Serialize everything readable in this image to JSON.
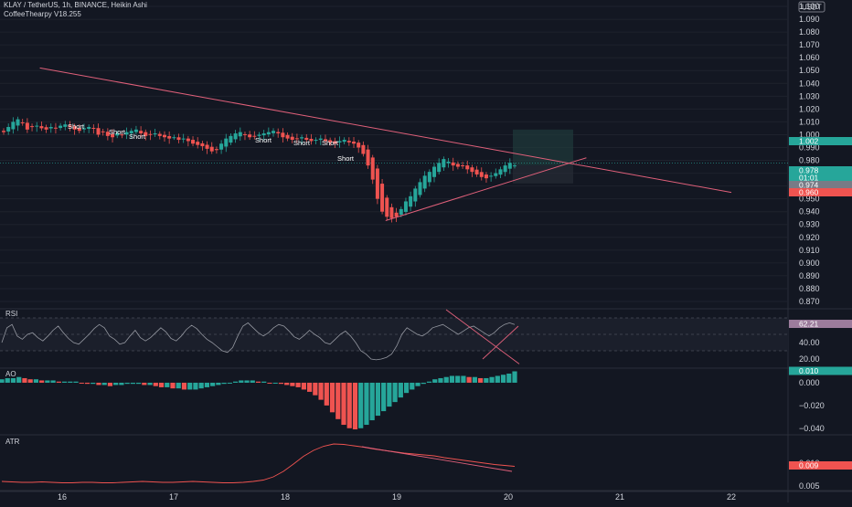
{
  "header": {
    "symbol_line": "KLAY / TetherUS, 1h, BINANCE, Heikin Ashi",
    "indicator_line": "CoffeeThearpy V18.255"
  },
  "currency_badge": "USDT",
  "panes": {
    "rsi_label": "RSI",
    "ao_label": "AO",
    "atr_label": "ATR"
  },
  "colors": {
    "background": "#131722",
    "bull": "#26a69a",
    "bear": "#ef5350",
    "trendline": "#e0607a",
    "grid": "#1e222d",
    "axis_text": "#d1d4dc"
  },
  "price_axis": {
    "ticks": [
      "1.100",
      "1.090",
      "1.080",
      "1.070",
      "1.060",
      "1.050",
      "1.040",
      "1.030",
      "1.020",
      "1.010",
      "1.000",
      "0.990",
      "0.980",
      "0.970",
      "0.960",
      "0.950",
      "0.940",
      "0.930",
      "0.920",
      "0.910",
      "0.900",
      "0.890",
      "0.880",
      "0.870"
    ],
    "badges": [
      {
        "text": "1.002",
        "color": "#26a69a"
      },
      {
        "text": "0.978",
        "color": "#26a69a"
      },
      {
        "text": "01:01",
        "color": "#26a69a"
      },
      {
        "text": "0.974",
        "color": "#787b86"
      },
      {
        "text": "0.960",
        "color": "#ef5350"
      }
    ]
  },
  "rsi_axis": {
    "ticks": [
      "40.00",
      "20.00"
    ],
    "badge": {
      "text": "62.21",
      "color": "#9c7c9c"
    }
  },
  "ao_axis": {
    "ticks": [
      "0.000",
      "−0.020",
      "−0.040"
    ],
    "badge": {
      "text": "0.010",
      "color": "#26a69a"
    }
  },
  "atr_axis": {
    "ticks": [
      "0.010",
      "0.005"
    ],
    "badge": {
      "text": "0.009",
      "color": "#ef5350"
    }
  },
  "time_axis": {
    "labels": [
      "16",
      "17",
      "18",
      "19",
      "20",
      "21",
      "22"
    ]
  },
  "signals": [
    {
      "text": "Short"
    },
    {
      "text": "Short"
    },
    {
      "text": "Short"
    },
    {
      "text": "Short"
    },
    {
      "text": "Short"
    },
    {
      "text": "Short"
    },
    {
      "text": "Short"
    }
  ],
  "chart_data": [
    {
      "type": "candlestick",
      "title": "KLAY / TetherUS, 1h, BINANCE, Heikin Ashi",
      "xlabel": "",
      "ylabel": "",
      "ylim": [
        0.865,
        1.105
      ],
      "x_ticks": [
        "16",
        "17",
        "18",
        "19",
        "20",
        "21",
        "22"
      ],
      "candles_close": [
        1.002,
        1.006,
        1.01,
        1.012,
        1.009,
        1.004,
        1.006,
        1.007,
        1.005,
        1.004,
        1.006,
        1.005,
        1.007,
        1.008,
        1.006,
        1.004,
        1.003,
        1.005,
        1.006,
        1.005,
        1.0,
        1.002,
        0.999,
        0.998,
        1.001,
        1.0,
        1.002,
        1.003,
        1.004,
        1.001,
        0.999,
        1.0,
        1.001,
        0.999,
        0.998,
        0.997,
        0.998,
        0.996,
        0.997,
        0.995,
        0.993,
        0.992,
        0.991,
        0.989,
        0.987,
        0.988,
        0.993,
        0.997,
        0.999,
        1.001,
        1.002,
        1.0,
        0.998,
        0.999,
        1.0,
        1.001,
        1.002,
        1.003,
        1.001,
        0.998,
        0.997,
        0.996,
        0.997,
        0.998,
        0.996,
        0.995,
        0.996,
        0.997,
        0.995,
        0.994,
        0.993,
        0.995,
        0.996,
        0.994,
        0.993,
        0.99,
        0.985,
        0.976,
        0.965,
        0.95,
        0.94,
        0.936,
        0.935,
        0.936,
        0.942,
        0.948,
        0.952,
        0.958,
        0.963,
        0.968,
        0.971,
        0.975,
        0.978,
        0.981,
        0.979,
        0.976,
        0.975,
        0.976,
        0.973,
        0.971,
        0.969,
        0.967,
        0.966,
        0.968,
        0.97,
        0.973,
        0.976,
        0.978,
        0.976
      ],
      "trendlines": [
        {
          "name": "resistance",
          "from": [
            "15.8",
            1.052
          ],
          "to": [
            "22",
            0.955
          ]
        },
        {
          "name": "support",
          "from": [
            "18.9",
            0.933
          ],
          "to": [
            "20.7",
            0.982
          ]
        }
      ]
    },
    {
      "type": "line",
      "title": "RSI",
      "xlabel": "",
      "ylabel": "",
      "ylim": [
        10,
        80
      ],
      "levels": [
        70,
        50,
        30
      ],
      "values": [
        40,
        58,
        62,
        48,
        44,
        50,
        52,
        46,
        42,
        48,
        55,
        60,
        52,
        45,
        40,
        38,
        44,
        50,
        57,
        62,
        58,
        48,
        44,
        38,
        40,
        48,
        55,
        46,
        42,
        46,
        52,
        58,
        53,
        45,
        42,
        48,
        56,
        61,
        57,
        50,
        44,
        40,
        35,
        30,
        28,
        34,
        48,
        60,
        64,
        58,
        52,
        48,
        52,
        58,
        62,
        60,
        54,
        47,
        44,
        49,
        55,
        50,
        46,
        40,
        38,
        44,
        50,
        54,
        48,
        40,
        30,
        26,
        20,
        19,
        20,
        22,
        26,
        36,
        50,
        58,
        54,
        50,
        48,
        52,
        58,
        60,
        62,
        58,
        54,
        50,
        54,
        58,
        60,
        56,
        52,
        48,
        52,
        58,
        62,
        64,
        62
      ]
    },
    {
      "type": "bar",
      "title": "AO",
      "xlabel": "",
      "ylabel": "",
      "ylim": [
        -0.045,
        0.012
      ],
      "values": [
        0.003,
        0.004,
        0.004,
        0.005,
        0.004,
        0.003,
        0.003,
        0.002,
        0.002,
        0.002,
        0.001,
        0.001,
        0.001,
        0.001,
        0.0,
        -0.001,
        -0.001,
        -0.002,
        -0.002,
        -0.003,
        -0.002,
        -0.002,
        -0.001,
        -0.001,
        -0.001,
        -0.002,
        -0.002,
        -0.003,
        -0.004,
        -0.004,
        -0.005,
        -0.005,
        -0.006,
        -0.006,
        -0.006,
        -0.005,
        -0.004,
        -0.003,
        -0.002,
        -0.001,
        0.0,
        0.001,
        0.002,
        0.002,
        0.002,
        0.001,
        0.001,
        0.0,
        0.0,
        -0.001,
        -0.002,
        -0.003,
        -0.004,
        -0.006,
        -0.008,
        -0.011,
        -0.015,
        -0.02,
        -0.026,
        -0.032,
        -0.037,
        -0.04,
        -0.041,
        -0.04,
        -0.037,
        -0.033,
        -0.029,
        -0.025,
        -0.021,
        -0.017,
        -0.013,
        -0.009,
        -0.006,
        -0.003,
        -0.001,
        0.001,
        0.003,
        0.004,
        0.005,
        0.006,
        0.006,
        0.006,
        0.005,
        0.005,
        0.004,
        0.004,
        0.005,
        0.006,
        0.007,
        0.008,
        0.01
      ]
    },
    {
      "type": "line",
      "title": "ATR",
      "xlabel": "",
      "ylabel": "",
      "ylim": [
        0.004,
        0.016
      ],
      "values": [
        0.006,
        0.0059,
        0.0058,
        0.0058,
        0.0059,
        0.0058,
        0.0057,
        0.0057,
        0.0058,
        0.0058,
        0.0057,
        0.0057,
        0.0058,
        0.0059,
        0.006,
        0.0059,
        0.0058,
        0.0058,
        0.0059,
        0.006,
        0.0059,
        0.0058,
        0.0057,
        0.0057,
        0.0058,
        0.006,
        0.0063,
        0.007,
        0.0082,
        0.0098,
        0.0115,
        0.0128,
        0.0137,
        0.0142,
        0.0141,
        0.0138,
        0.0135,
        0.0131,
        0.0128,
        0.0125,
        0.0122,
        0.012,
        0.0118,
        0.0116,
        0.0112,
        0.0109,
        0.0106,
        0.0103,
        0.01,
        0.0097,
        0.0095,
        0.0093
      ]
    }
  ]
}
